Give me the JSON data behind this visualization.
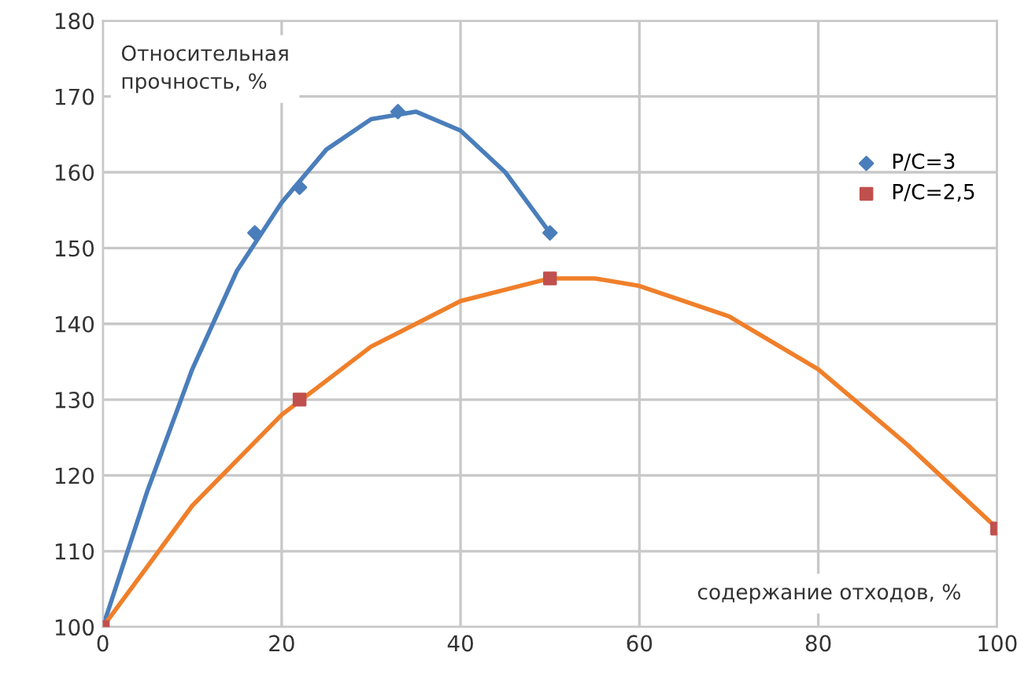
{
  "chart_data": {
    "type": "scatter",
    "xlabel": "содержание отходов, %",
    "ylabel": "Относительная\nпрочность, %",
    "xlim": [
      0,
      100
    ],
    "ylim": [
      100,
      180
    ],
    "xticks": [
      0,
      20,
      40,
      60,
      80,
      100
    ],
    "yticks": [
      100,
      110,
      120,
      130,
      140,
      150,
      160,
      170,
      180
    ],
    "grid": true,
    "legend": "right",
    "series": [
      {
        "type": "line",
        "color": "#4a7ebb",
        "marker": "none",
        "x": [
          0,
          5,
          10,
          15,
          20,
          25,
          30,
          35,
          40,
          45,
          50
        ],
        "values": [
          100,
          118,
          134,
          147,
          156,
          163,
          167,
          168,
          165.5,
          160,
          152
        ]
      },
      {
        "type": "line",
        "color": "#f07f2a",
        "marker": "none",
        "x": [
          0,
          10,
          20,
          30,
          40,
          50,
          55,
          60,
          70,
          80,
          90,
          100
        ],
        "values": [
          100,
          116,
          128,
          137,
          143,
          146,
          146,
          145,
          141,
          134,
          124,
          113
        ]
      },
      {
        "name": "P/C=3",
        "color": "#4a7ebb",
        "marker": "diamond",
        "x": [
          17,
          22,
          33,
          50
        ],
        "values": [
          152,
          158,
          168,
          152
        ]
      },
      {
        "name": "P/C=2,5",
        "color": "#c0504d",
        "marker": "square",
        "x": [
          0,
          22,
          50,
          100
        ],
        "values": [
          100,
          130,
          146,
          113
        ]
      }
    ]
  }
}
